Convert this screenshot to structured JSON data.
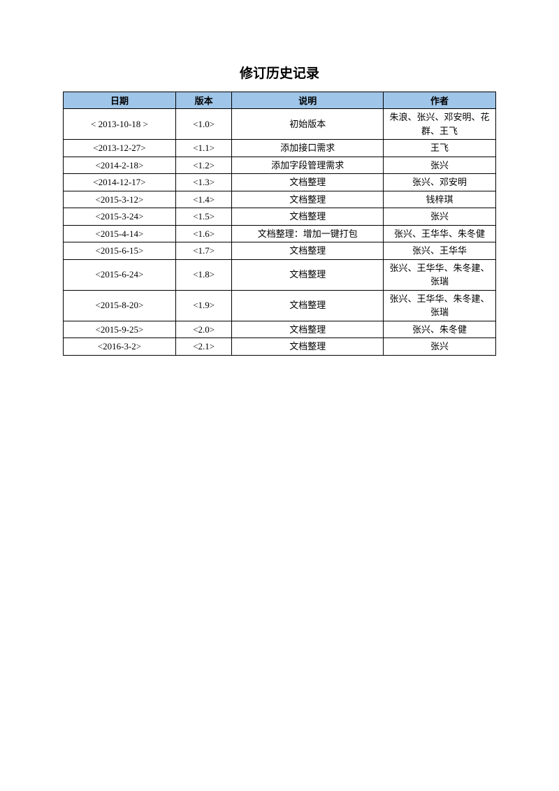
{
  "title": "修订历史记录",
  "table": {
    "headers": {
      "date": "日期",
      "version": "版本",
      "description": "说明",
      "author": "作者"
    },
    "rows": [
      {
        "date": "< 2013-10-18 >",
        "version": "<1.0>",
        "description": "初始版本",
        "author": "朱浪、张兴、邓安明、花群、王飞"
      },
      {
        "date": "<2013-12-27>",
        "version": "<1.1>",
        "description": "添加接口需求",
        "author": "王飞"
      },
      {
        "date": "<2014-2-18>",
        "version": "<1.2>",
        "description": "添加字段管理需求",
        "author": "张兴"
      },
      {
        "date": "<2014-12-17>",
        "version": "<1.3>",
        "description": "文档整理",
        "author": "张兴、邓安明"
      },
      {
        "date": "<2015-3-12>",
        "version": "<1.4>",
        "description": "文档整理",
        "author": "钱梓琪"
      },
      {
        "date": "<2015-3-24>",
        "version": "<1.5>",
        "description": "文档整理",
        "author": "张兴"
      },
      {
        "date": "<2015-4-14>",
        "version": "<1.6>",
        "description": "文档整理：增加一键打包",
        "author": "张兴、王华华、朱冬健"
      },
      {
        "date": "<2015-6-15>",
        "version": "<1.7>",
        "description": "文档整理",
        "author": "张兴、王华华"
      },
      {
        "date": "<2015-6-24>",
        "version": "<1.8>",
        "description": "文档整理",
        "author": "张兴、王华华、朱冬建、张瑞"
      },
      {
        "date": "<2015-8-20>",
        "version": "<1.9>",
        "description": "文档整理",
        "author": "张兴、王华华、朱冬建、张瑞"
      },
      {
        "date": "<2015-9-25>",
        "version": "<2.0>",
        "description": "文档整理",
        "author": "张兴、朱冬健"
      },
      {
        "date": "<2016-3-2>",
        "version": "<2.1>",
        "description": "文档整理",
        "author": "张兴"
      }
    ],
    "styling": {
      "header_bg_color": "#9fc5e8",
      "border_color": "#000000",
      "text_color": "#000000",
      "background_color": "#ffffff",
      "title_fontsize": 19,
      "cell_fontsize": 13,
      "col_widths_pct": [
        26,
        13,
        35,
        26
      ]
    }
  }
}
